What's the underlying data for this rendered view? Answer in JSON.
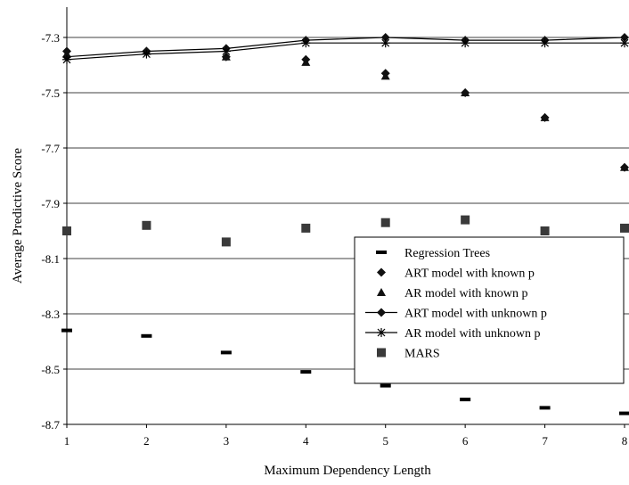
{
  "chart_data": {
    "type": "scatter",
    "xlabel": "Maximum Dependency Length",
    "ylabel": "Average Predictive Score",
    "x": [
      1,
      2,
      3,
      4,
      5,
      6,
      7,
      8
    ],
    "xticks": [
      "1",
      "2",
      "3",
      "4",
      "5",
      "6",
      "7",
      "8"
    ],
    "yticks": [
      "-7.3",
      "-7.5",
      "-7.7",
      "-7.9",
      "-8.1",
      "-8.3",
      "-8.5",
      "-8.7"
    ],
    "ylim": [
      -8.7,
      -7.2
    ],
    "xlim": [
      1,
      8
    ],
    "grid": "horizontal",
    "legend_position": "bottom-right",
    "series": [
      {
        "name": "Regression Trees",
        "marker": "dash",
        "line": false,
        "values": [
          -8.36,
          -8.38,
          -8.44,
          -8.51,
          -8.56,
          -8.61,
          -8.64,
          -8.66
        ]
      },
      {
        "name": "ART model with known p",
        "marker": "diamond",
        "line": false,
        "values": [
          -7.35,
          -7.35,
          -7.37,
          -7.38,
          -7.43,
          -7.5,
          -7.59,
          -7.77
        ]
      },
      {
        "name": "AR model with known p",
        "marker": "triangle",
        "line": false,
        "values": [
          -7.36,
          -7.35,
          -7.37,
          -7.39,
          -7.44,
          -7.5,
          -7.59,
          -7.77
        ]
      },
      {
        "name": "ART model with unknown p",
        "marker": "diamond",
        "line": true,
        "values": [
          -7.37,
          -7.35,
          -7.34,
          -7.31,
          -7.3,
          -7.31,
          -7.31,
          -7.3
        ]
      },
      {
        "name": "AR model with unknown p",
        "marker": "asterisk",
        "line": true,
        "values": [
          -7.38,
          -7.36,
          -7.35,
          -7.32,
          -7.32,
          -7.32,
          -7.32,
          -7.32
        ]
      },
      {
        "name": "MARS",
        "marker": "square",
        "line": false,
        "values": [
          -8.0,
          -7.98,
          -8.04,
          -7.99,
          -7.97,
          -7.96,
          -8.0,
          -7.99
        ]
      }
    ]
  }
}
